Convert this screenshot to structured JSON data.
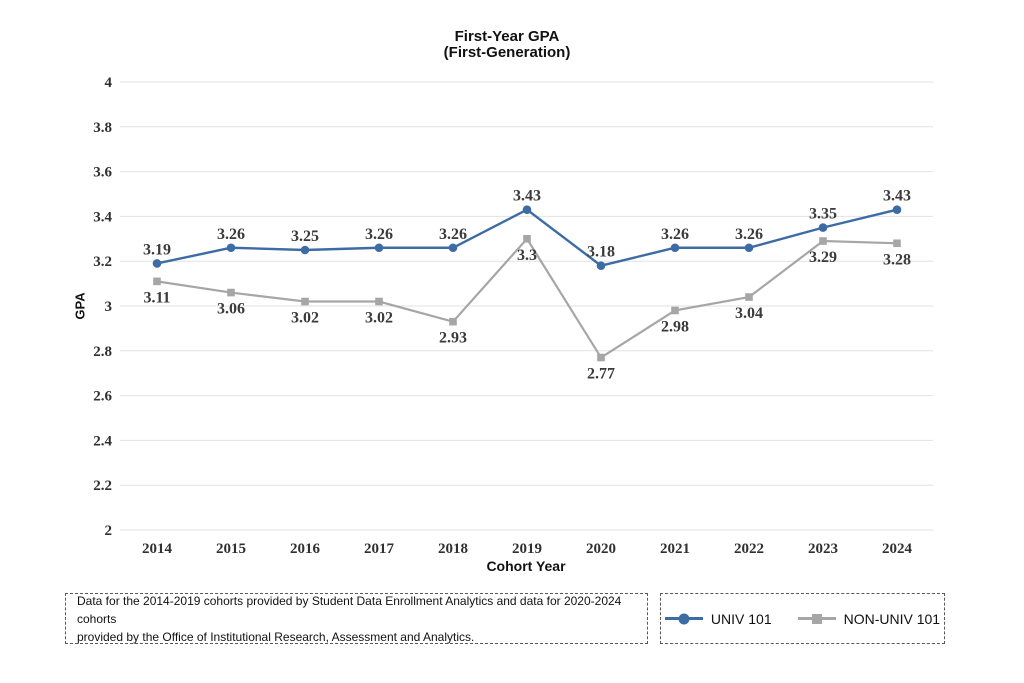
{
  "title": {
    "line1": "First-Year GPA",
    "line2": "(First-Generation)"
  },
  "chart_data": {
    "type": "line",
    "title": "First-Year GPA (First-Generation)",
    "xlabel": "Cohort Year",
    "ylabel": "GPA",
    "ylim": [
      2,
      4
    ],
    "y_tick_step": 0.2,
    "y_ticks": [
      "4",
      "3.8",
      "3.6",
      "3.4",
      "3.2",
      "3",
      "2.8",
      "2.6",
      "2.4",
      "2.2",
      "2"
    ],
    "grid": true,
    "legend_position": "bottom-right",
    "categories": [
      "2014",
      "2015",
      "2016",
      "2017",
      "2018",
      "2019",
      "2020",
      "2021",
      "2022",
      "2023",
      "2024"
    ],
    "series": [
      {
        "name": "UNIV 101",
        "color": "#3D6CA5",
        "marker": "circle",
        "label_position": "above",
        "values": [
          3.19,
          3.26,
          3.25,
          3.26,
          3.26,
          3.43,
          3.18,
          3.26,
          3.26,
          3.35,
          3.43
        ]
      },
      {
        "name": "NON-UNIV 101",
        "color": "#A6A6A6",
        "marker": "square",
        "label_position": "below",
        "values": [
          3.11,
          3.06,
          3.02,
          3.02,
          2.93,
          3.3,
          2.77,
          2.98,
          3.04,
          3.29,
          3.28
        ]
      }
    ]
  },
  "footnote": {
    "line1": "Data for the 2014-2019 cohorts provided by Student Data Enrollment Analytics and data for 2020-2024 cohorts",
    "line2": "provided by the Office of Institutional Research, Assessment and Analytics."
  },
  "colors": {
    "univ_101_line": "#3D6CA5",
    "non_univ_101_line": "#A6A6A6",
    "gridline": "#E2E2E2",
    "tick_label_text": "#303030",
    "data_label_text": "#3A3A3A",
    "title_text": "#111111",
    "box_border": "#595959",
    "background": "#FFFFFF"
  }
}
